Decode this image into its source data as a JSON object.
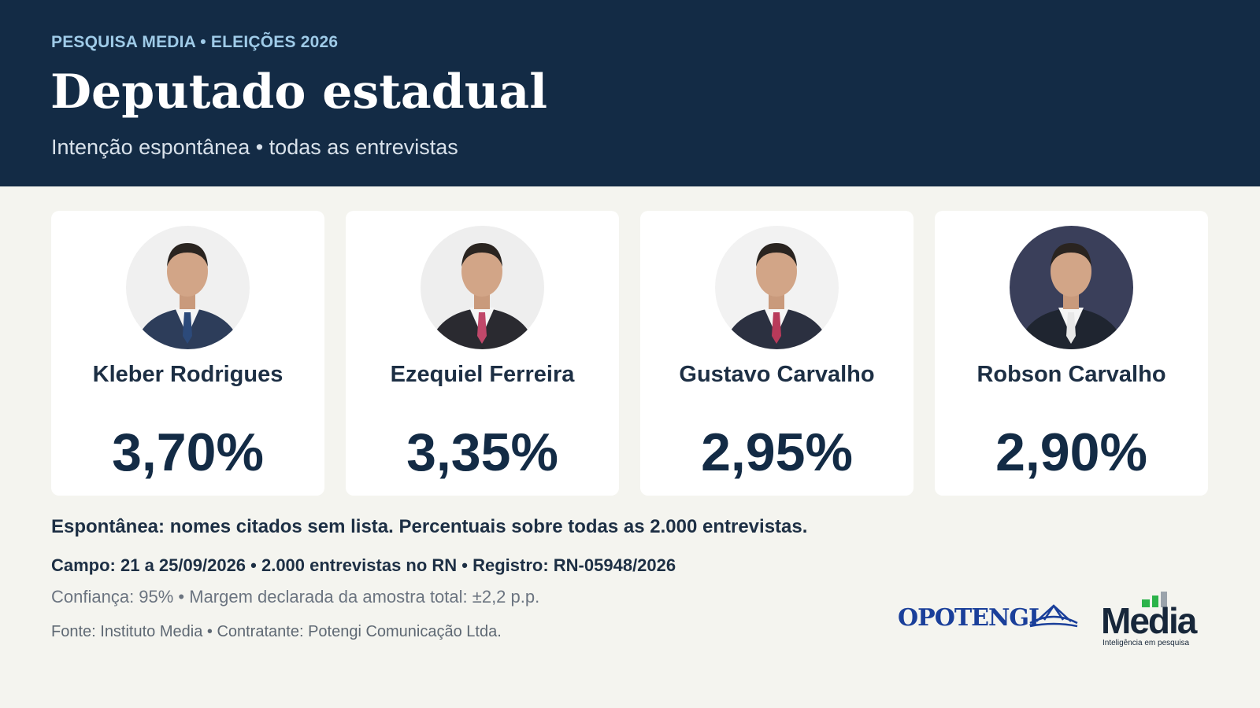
{
  "header": {
    "kicker": "PESQUISA MEDIA • ELEIÇÕES 2026",
    "title": "Deputado estadual",
    "subtitle": "Intenção espontânea • todas as entrevistas"
  },
  "candidates": [
    {
      "name": "Kleber Rodrigues",
      "percent": "3,70%"
    },
    {
      "name": "Ezequiel Ferreira",
      "percent": "3,35%"
    },
    {
      "name": "Gustavo Carvalho",
      "percent": "2,95%"
    },
    {
      "name": "Robson Carvalho",
      "percent": "2,90%"
    }
  ],
  "notes": {
    "method": "Espontânea: nomes citados sem lista. Percentuais sobre todas as 2.000 entrevistas.",
    "field": "Campo: 21 a 25/09/2026 • 2.000 entrevistas no RN • Registro: RN-05948/2026",
    "confidence": "Confiança: 95% • Margem declarada da amostra total: ±2,2 p.p.",
    "source": "Fonte: Instituto Media • Contratante: Potengi Comunicação Ltda."
  },
  "logos": {
    "potengi": "OPOTENGI",
    "media": "Media",
    "media_tagline": "Inteligência em pesquisa"
  }
}
